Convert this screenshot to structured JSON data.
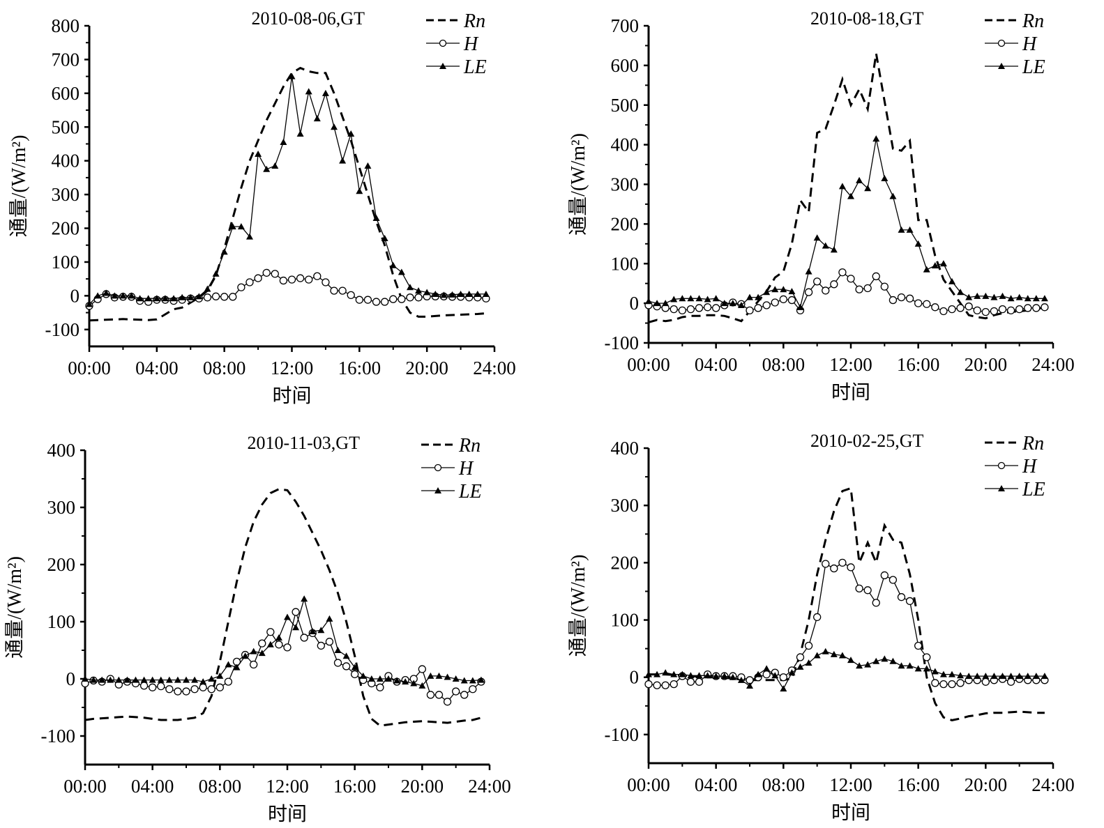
{
  "chart_data": [
    {
      "type": "line",
      "title": "2010-08-06,GT",
      "xlabel": "时间",
      "ylabel": "通量/(W/m²)",
      "xlim": [
        0,
        24
      ],
      "ylim": [
        -150,
        800
      ],
      "yticks": [
        -100,
        0,
        100,
        200,
        300,
        400,
        500,
        600,
        700,
        800
      ],
      "ytick_labels": [
        "-100",
        "0",
        "100",
        "200",
        "300",
        "400",
        "500",
        "600",
        "700",
        "800"
      ],
      "xticks": [
        0,
        4,
        8,
        12,
        16,
        20,
        24
      ],
      "xtick_labels": [
        "00:00",
        "04:00",
        "08:00",
        "12:00",
        "16:00",
        "20:00",
        "24:00"
      ],
      "legend": {
        "position": "top-right",
        "entries": [
          "Rn",
          "H",
          "LE"
        ]
      },
      "x": [
        0,
        0.5,
        1,
        1.5,
        2,
        2.5,
        3,
        3.5,
        4,
        4.5,
        5,
        5.5,
        6,
        6.5,
        7,
        7.5,
        8,
        8.5,
        9,
        9.5,
        10,
        10.5,
        11,
        11.5,
        12,
        12.5,
        13,
        13.5,
        14,
        14.5,
        15,
        15.5,
        16,
        16.5,
        17,
        17.5,
        18,
        18.5,
        19,
        19.5,
        20,
        20.5,
        21,
        21.5,
        22,
        22.5,
        23,
        23.5
      ],
      "series": [
        {
          "name": "Rn",
          "style": "dashed",
          "values": [
            -73,
            -72,
            -71,
            -70,
            -69,
            -70,
            -71,
            -72,
            -70,
            -55,
            -40,
            -35,
            -20,
            -5,
            15,
            60,
            140,
            230,
            320,
            400,
            460,
            520,
            570,
            620,
            660,
            675,
            665,
            660,
            660,
            600,
            530,
            460,
            380,
            300,
            220,
            150,
            60,
            -10,
            -50,
            -62,
            -62,
            -60,
            -58,
            -57,
            -56,
            -55,
            -54,
            -52
          ]
        },
        {
          "name": "H",
          "style": "line-circle",
          "values": [
            -30,
            -10,
            5,
            -5,
            -3,
            -3,
            -15,
            -18,
            -12,
            -12,
            -15,
            -12,
            -8,
            -8,
            -5,
            -2,
            -3,
            -3,
            25,
            40,
            52,
            68,
            65,
            45,
            48,
            52,
            48,
            58,
            40,
            15,
            15,
            2,
            -12,
            -12,
            -18,
            -18,
            -10,
            -10,
            -5,
            -5,
            -2,
            -2,
            -2,
            -3,
            -3,
            -5,
            -5,
            -8
          ]
        },
        {
          "name": "LE",
          "style": "line-triangle",
          "values": [
            -25,
            0,
            8,
            0,
            0,
            0,
            -8,
            -8,
            -8,
            -8,
            -8,
            -5,
            -5,
            -2,
            20,
            65,
            130,
            205,
            205,
            175,
            420,
            375,
            385,
            455,
            650,
            480,
            605,
            525,
            600,
            500,
            400,
            480,
            310,
            385,
            230,
            170,
            90,
            70,
            25,
            15,
            10,
            5,
            2,
            3,
            5,
            5,
            5,
            5
          ]
        }
      ]
    },
    {
      "type": "line",
      "title": "2010-08-18,GT",
      "xlabel": "时间",
      "ylabel": "通量/(W/m²)",
      "xlim": [
        0,
        24
      ],
      "ylim": [
        -100,
        700
      ],
      "yticks": [
        -100,
        0,
        100,
        200,
        300,
        400,
        500,
        600,
        700
      ],
      "ytick_labels": [
        "-100",
        "0",
        "100",
        "200",
        "300",
        "400",
        "500",
        "600",
        "700"
      ],
      "xticks": [
        0,
        4,
        8,
        12,
        16,
        20,
        24
      ],
      "xtick_labels": [
        "00:00",
        "04:00",
        "08:00",
        "12:00",
        "16:00",
        "20:00",
        "24:00"
      ],
      "legend": {
        "position": "top-right",
        "entries": [
          "Rn",
          "H",
          "LE"
        ]
      },
      "x": [
        0,
        0.5,
        1,
        1.5,
        2,
        2.5,
        3,
        3.5,
        4,
        4.5,
        5,
        5.5,
        6,
        6.5,
        7,
        7.5,
        8,
        8.5,
        9,
        9.5,
        10,
        10.5,
        11,
        11.5,
        12,
        12.5,
        13,
        13.5,
        14,
        14.5,
        15,
        15.5,
        16,
        16.5,
        17,
        17.5,
        18,
        18.5,
        19,
        19.5,
        20,
        20.5,
        21,
        21.5,
        22,
        22.5,
        23,
        23.5
      ],
      "series": [
        {
          "name": "Rn",
          "style": "dashed",
          "values": [
            -48,
            -42,
            -45,
            -42,
            -35,
            -32,
            -32,
            -30,
            -30,
            -32,
            -38,
            -45,
            -20,
            5,
            30,
            65,
            80,
            150,
            260,
            230,
            430,
            440,
            500,
            565,
            500,
            540,
            490,
            630,
            510,
            390,
            385,
            410,
            210,
            210,
            120,
            60,
            30,
            0,
            -30,
            -35,
            -38,
            -30,
            -25,
            -22,
            -20,
            -18,
            -15,
            -10
          ]
        },
        {
          "name": "H",
          "style": "line-circle",
          "values": [
            -5,
            -8,
            -12,
            -15,
            -18,
            -15,
            -12,
            -10,
            -12,
            -5,
            2,
            -2,
            -18,
            -12,
            -5,
            2,
            10,
            8,
            -18,
            28,
            55,
            32,
            48,
            78,
            62,
            35,
            38,
            68,
            42,
            8,
            15,
            12,
            0,
            -2,
            -10,
            -20,
            -15,
            -12,
            -8,
            -18,
            -22,
            -20,
            -15,
            -18,
            -15,
            -12,
            -12,
            -10
          ]
        },
        {
          "name": "LE",
          "style": "line-triangle",
          "values": [
            5,
            0,
            0,
            10,
            12,
            12,
            12,
            10,
            12,
            0,
            0,
            -5,
            15,
            15,
            28,
            35,
            35,
            30,
            -10,
            80,
            165,
            145,
            135,
            295,
            270,
            310,
            290,
            415,
            315,
            270,
            185,
            185,
            150,
            85,
            95,
            100,
            55,
            28,
            15,
            18,
            18,
            15,
            18,
            12,
            15,
            12,
            12,
            12
          ]
        }
      ]
    },
    {
      "type": "line",
      "title": "2010-11-03,GT",
      "xlabel": "时间",
      "ylabel": "通量/(W/m²)",
      "xlim": [
        0,
        24
      ],
      "ylim": [
        -150,
        400
      ],
      "yticks": [
        -100,
        0,
        100,
        200,
        300,
        400
      ],
      "ytick_labels": [
        "-100",
        "0",
        "100",
        "200",
        "300",
        "400"
      ],
      "xticks": [
        0,
        4,
        8,
        12,
        16,
        20,
        24
      ],
      "xtick_labels": [
        "00:00",
        "04:00",
        "08:00",
        "12:00",
        "16:00",
        "20:00",
        "24:00"
      ],
      "legend": {
        "position": "top-right",
        "entries": [
          "Rn",
          "H",
          "LE"
        ]
      },
      "x": [
        0,
        0.5,
        1,
        1.5,
        2,
        2.5,
        3,
        3.5,
        4,
        4.5,
        5,
        5.5,
        6,
        6.5,
        7,
        7.5,
        8,
        8.5,
        9,
        9.5,
        10,
        10.5,
        11,
        11.5,
        12,
        12.5,
        13,
        13.5,
        14,
        14.5,
        15,
        15.5,
        16,
        16.5,
        17,
        17.5,
        18,
        18.5,
        19,
        19.5,
        20,
        20.5,
        21,
        21.5,
        22,
        22.5,
        23,
        23.5
      ],
      "series": [
        {
          "name": "Rn",
          "style": "dashed",
          "values": [
            -72,
            -70,
            -69,
            -68,
            -67,
            -66,
            -67,
            -68,
            -70,
            -72,
            -72,
            -72,
            -70,
            -68,
            -60,
            -30,
            30,
            100,
            170,
            230,
            275,
            305,
            325,
            332,
            330,
            310,
            285,
            255,
            225,
            190,
            150,
            100,
            40,
            -30,
            -70,
            -82,
            -80,
            -78,
            -76,
            -75,
            -74,
            -75,
            -76,
            -77,
            -75,
            -73,
            -72,
            -68
          ]
        },
        {
          "name": "H",
          "style": "line-circle",
          "values": [
            -8,
            -3,
            -5,
            0,
            -10,
            -5,
            -8,
            -12,
            -15,
            -13,
            -18,
            -22,
            -22,
            -18,
            -15,
            -18,
            -15,
            -5,
            30,
            42,
            25,
            62,
            82,
            60,
            55,
            117,
            72,
            80,
            58,
            65,
            28,
            22,
            8,
            -2,
            -8,
            -15,
            5,
            -5,
            -2,
            0,
            17,
            -28,
            -28,
            -40,
            -22,
            -28,
            -18,
            -5
          ]
        },
        {
          "name": "LE",
          "style": "line-triangle",
          "values": [
            0,
            -2,
            -2,
            -2,
            -2,
            -2,
            -2,
            -2,
            -2,
            -2,
            -2,
            -2,
            -2,
            -2,
            -5,
            0,
            5,
            25,
            20,
            40,
            48,
            45,
            60,
            72,
            108,
            90,
            140,
            83,
            85,
            105,
            50,
            40,
            20,
            5,
            0,
            0,
            0,
            -3,
            -5,
            -8,
            -12,
            5,
            5,
            3,
            0,
            -3,
            -3,
            -2
          ]
        }
      ]
    },
    {
      "type": "line",
      "title": "2010-02-25,GT",
      "xlabel": "时间",
      "ylabel": "通量/(W/m²)",
      "xlim": [
        0,
        24
      ],
      "ylim": [
        -150,
        400
      ],
      "yticks": [
        -100,
        0,
        100,
        200,
        300,
        400
      ],
      "ytick_labels": [
        "-100",
        "0",
        "100",
        "200",
        "300",
        "400"
      ],
      "xticks": [
        0,
        4,
        8,
        12,
        16,
        20,
        24
      ],
      "xtick_labels": [
        "00:00",
        "04:00",
        "08:00",
        "12:00",
        "16:00",
        "20:00",
        "24:00"
      ],
      "legend": {
        "position": "top-right",
        "entries": [
          "Rn",
          "H",
          "LE"
        ]
      },
      "x": [
        0,
        0.5,
        1,
        1.5,
        2,
        2.5,
        3,
        3.5,
        4,
        4.5,
        5,
        5.5,
        6,
        6.5,
        7,
        7.5,
        8,
        8.5,
        9,
        9.5,
        10,
        10.5,
        11,
        11.5,
        12,
        12.5,
        13,
        13.5,
        14,
        14.5,
        15,
        15.5,
        16,
        16.5,
        17,
        17.5,
        18,
        18.5,
        19,
        19.5,
        20,
        20.5,
        21,
        21.5,
        22,
        22.5,
        23,
        23.5
      ],
      "series": [
        {
          "name": "Rn",
          "style": "dashed",
          "values": [
            5,
            5,
            5,
            4,
            3,
            2,
            1,
            0,
            0,
            -1,
            -2,
            -4,
            -5,
            -5,
            -5,
            -5,
            -5,
            -2,
            40,
            100,
            180,
            240,
            290,
            325,
            330,
            200,
            235,
            200,
            265,
            240,
            235,
            180,
            100,
            0,
            -45,
            -70,
            -75,
            -72,
            -68,
            -66,
            -63,
            -62,
            -62,
            -61,
            -60,
            -61,
            -62,
            -62
          ]
        },
        {
          "name": "H",
          "style": "line-circle",
          "values": [
            -12,
            -14,
            -14,
            -12,
            2,
            -8,
            -8,
            5,
            2,
            2,
            2,
            0,
            -5,
            0,
            5,
            8,
            0,
            12,
            35,
            55,
            105,
            198,
            190,
            200,
            192,
            155,
            152,
            130,
            178,
            170,
            140,
            133,
            55,
            35,
            -10,
            -12,
            -12,
            -10,
            -5,
            -5,
            -8,
            -5,
            -3,
            -8,
            -3,
            -5,
            -5,
            -5
          ]
        },
        {
          "name": "LE",
          "style": "line-triangle",
          "values": [
            5,
            5,
            8,
            5,
            5,
            3,
            3,
            3,
            2,
            2,
            0,
            -5,
            -15,
            5,
            15,
            3,
            -20,
            8,
            18,
            25,
            38,
            45,
            40,
            38,
            30,
            20,
            22,
            28,
            32,
            28,
            20,
            20,
            15,
            15,
            10,
            5,
            5,
            3,
            2,
            2,
            2,
            2,
            2,
            2,
            2,
            2,
            2,
            2
          ]
        }
      ]
    }
  ]
}
